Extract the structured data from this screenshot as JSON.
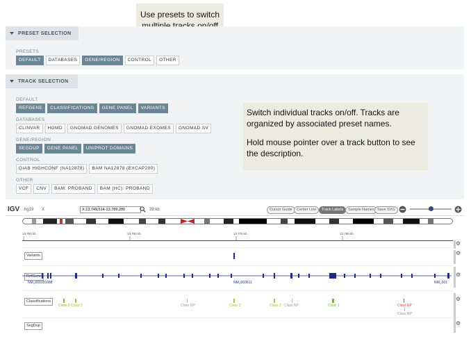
{
  "notes": {
    "preset_note": "Use presets to switch multiple tracks on/off",
    "track_note_1": "Switch individual tracks on/off. Tracks are organized by associated preset names.",
    "track_note_2": "Hold mouse pointer over a track button to see the description."
  },
  "preset_selection": {
    "header": "PRESET SELECTION",
    "label": "PRESETS",
    "buttons": [
      {
        "label": "DEFAULT",
        "active": true
      },
      {
        "label": "DATABASES",
        "active": false
      },
      {
        "label": "GENE/REGION",
        "active": true
      },
      {
        "label": "CONTROL",
        "active": false
      },
      {
        "label": "OTHER",
        "active": false
      }
    ]
  },
  "track_selection": {
    "header": "TRACK SELECTION",
    "groups": [
      {
        "label": "DEFAULT",
        "buttons": [
          {
            "label": "REFGENE",
            "active": true
          },
          {
            "label": "CLASSIFICATIONS",
            "active": true
          },
          {
            "label": "GENE PANEL",
            "active": true
          },
          {
            "label": "VARIANTS",
            "active": true
          }
        ]
      },
      {
        "label": "DATABASES",
        "buttons": [
          {
            "label": "CLINVAR",
            "active": false
          },
          {
            "label": "HGMD",
            "active": false
          },
          {
            "label": "GNOMAD GENOMES",
            "active": false
          },
          {
            "label": "GNOMAD EXOMES",
            "active": false
          },
          {
            "label": "GNOMAD SV",
            "active": false
          }
        ]
      },
      {
        "label": "GENE/REGION",
        "buttons": [
          {
            "label": "SEGDUP",
            "active": true
          },
          {
            "label": "GENE PANEL",
            "active": true
          },
          {
            "label": "UNIPROT DOMAINS",
            "active": true
          }
        ]
      },
      {
        "label": "CONTROL",
        "buttons": [
          {
            "label": "GIAB HIGHCONF (NA12878)",
            "active": false
          },
          {
            "label": "BAM NA12878 (EXCAP200)",
            "active": false
          }
        ]
      },
      {
        "label": "OTHER",
        "buttons": [
          {
            "label": "VCF",
            "active": false
          },
          {
            "label": "CNV",
            "active": false
          },
          {
            "label": "BAM: PROBAND",
            "active": false
          },
          {
            "label": "BAM (HC): PROBAND",
            "active": false
          }
        ]
      }
    ]
  },
  "igv": {
    "logo": "IGV",
    "genome": "hg19",
    "close": "X",
    "locus": "X:13,749,514-13,789,280",
    "width_label": "39 kb",
    "buttons": [
      "Cursor Guide",
      "Center Line",
      "Track Labels",
      "Sample Names",
      "Save SVG"
    ],
    "active_button": "Track Labels",
    "zoom_level": 0.55,
    "ruler_ticks": [
      "13,750 kb",
      "13,760 kb",
      "13,770 kb",
      "13,780 kb"
    ],
    "tracks": {
      "variants": "Variants",
      "refgene": "RefGene",
      "classifications": "Classifications",
      "segdup": "SegDup"
    },
    "transcripts": [
      "NM_001031688",
      "NM_003611",
      "NM_001"
    ],
    "classifications": [
      {
        "label": "Class 3",
        "color": "#8db33a"
      },
      {
        "label": "Class 2",
        "color": "#a9c43a"
      },
      {
        "label": "Class NP",
        "color": "#b5b5b5"
      },
      {
        "label": "Class 2",
        "color": "#a9c43a"
      },
      {
        "label": "Class 2",
        "color": "#a9c43a"
      },
      {
        "label": "Class NP",
        "color": "#b5b5b5"
      },
      {
        "label": "Class 1",
        "color": "#7cb342"
      },
      {
        "label": "Class NP",
        "color": "#d9534f"
      },
      {
        "label": "Class NP",
        "color": "#b5b5b5"
      }
    ]
  }
}
